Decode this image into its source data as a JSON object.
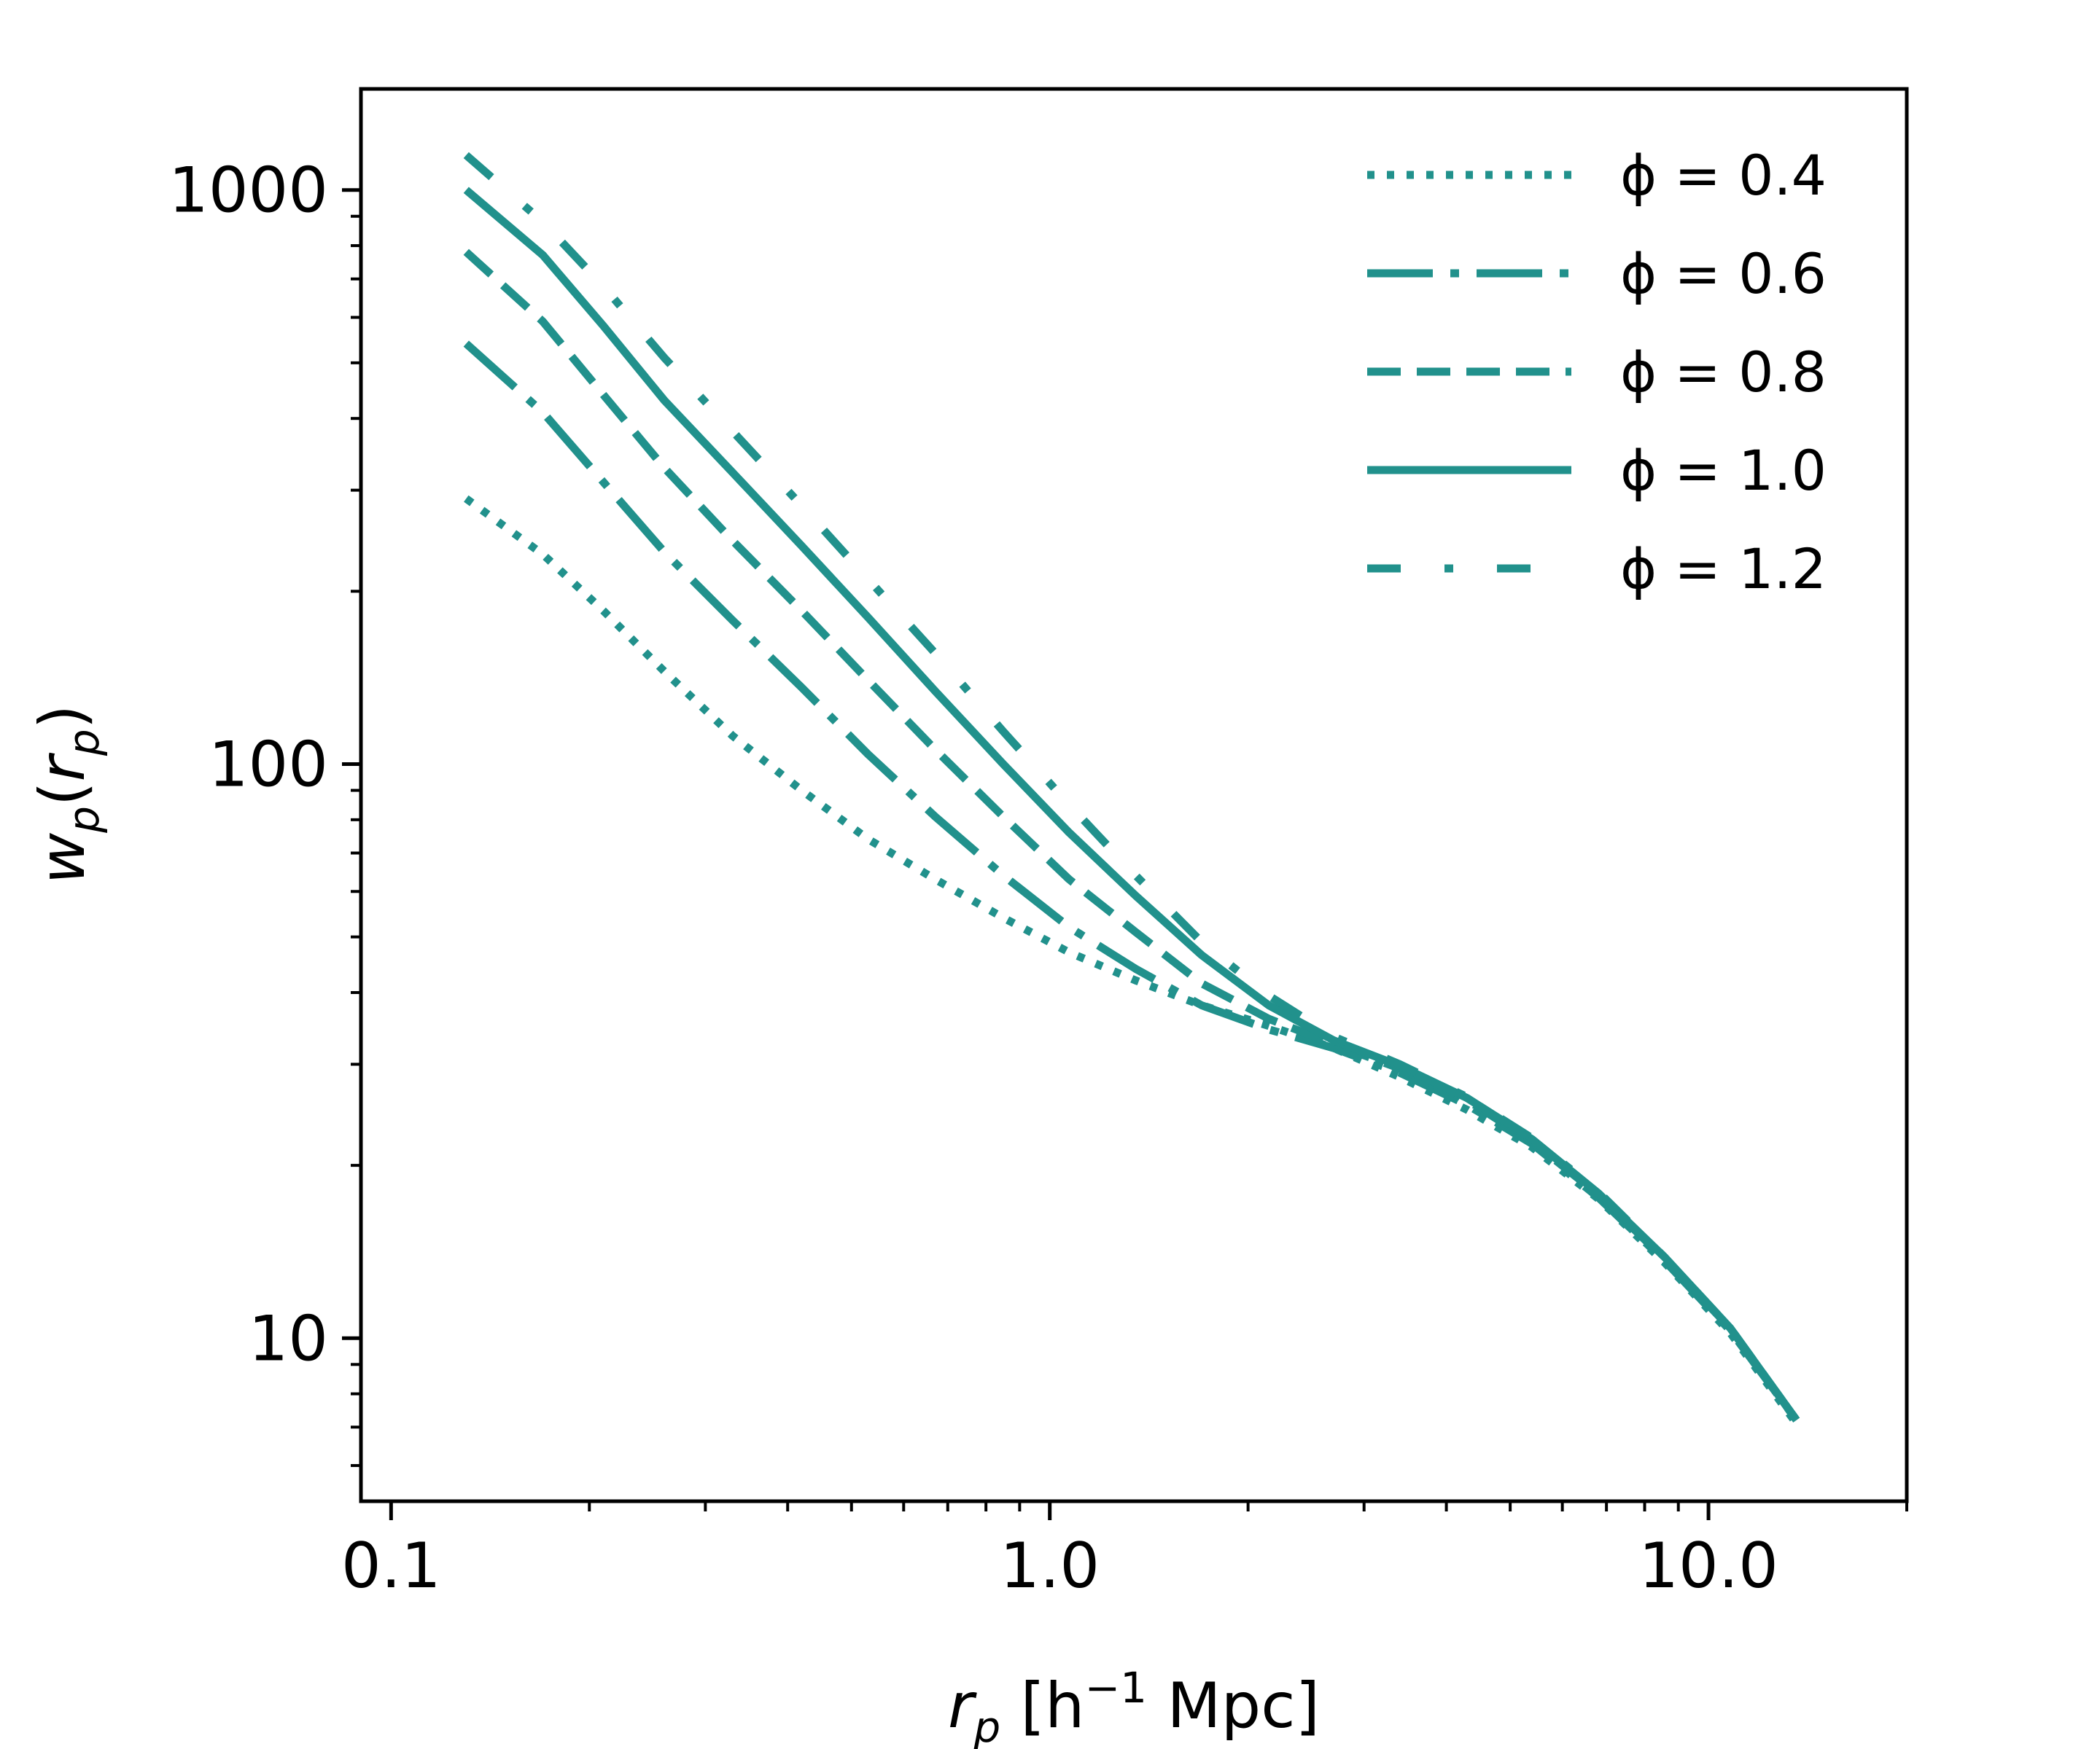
{
  "chart_data": {
    "type": "line",
    "title": "",
    "xlabel": "r_p [h^-1 Mpc]",
    "xlabel_parts": {
      "var": "r",
      "sub": "p",
      "pre": " [h",
      "sup": "−1",
      "post": " Mpc]"
    },
    "ylabel": "w_p(r_p)",
    "ylabel_parts": {
      "var": "w",
      "sub": "p",
      "open": "(",
      "var2": "r",
      "sub2": "p",
      "close": ")"
    },
    "xscale": "log",
    "yscale": "log",
    "xlim": [
      0.09,
      20
    ],
    "ylim": [
      5.2,
      1500
    ],
    "grid": false,
    "legend_position": "top-right",
    "x_tick_labels": [
      "0.1",
      "1.0",
      "10.0"
    ],
    "x_tick_values": [
      0.1,
      1.0,
      10.0
    ],
    "y_tick_labels": [
      "10",
      "100",
      "1000"
    ],
    "y_tick_values": [
      10,
      100,
      1000
    ],
    "color": "#21918c",
    "x": [
      0.13,
      0.17,
      0.21,
      0.26,
      0.33,
      0.42,
      0.53,
      0.67,
      0.85,
      1.07,
      1.35,
      1.7,
      2.15,
      2.7,
      3.4,
      4.3,
      5.4,
      6.8,
      8.6,
      10.8,
      13.6
    ],
    "series": [
      {
        "name": "ϕ = 0.4",
        "phi_label": "0.4",
        "style": "dotted",
        "values": [
          290,
          232,
          185,
          145,
          112,
          90,
          74,
          63,
          54,
          47,
          42,
          38,
          35,
          32,
          28.5,
          25,
          21.5,
          17.5,
          13.5,
          10.2,
          7.1
        ]
      },
      {
        "name": "ϕ = 0.6",
        "phi_label": "0.6",
        "style": "dashdot",
        "values": [
          540,
          410,
          310,
          234,
          178,
          136,
          104,
          81,
          64,
          52,
          44,
          38,
          34.5,
          32,
          29,
          25.5,
          21.8,
          17.6,
          13.6,
          10.3,
          7.2
        ]
      },
      {
        "name": "ϕ = 0.8",
        "phi_label": "0.8",
        "style": "dashed",
        "values": [
          780,
          590,
          440,
          328,
          245,
          185,
          140,
          106,
          81,
          63,
          51,
          41.5,
          36,
          32.5,
          29.5,
          26,
          22,
          17.8,
          13.7,
          10.4,
          7.2
        ]
      },
      {
        "name": "ϕ = 1.0",
        "phi_label": "1.0",
        "style": "solid",
        "values": [
          1000,
          770,
          580,
          430,
          322,
          240,
          180,
          134,
          100,
          76,
          59,
          46.5,
          38,
          33,
          29.8,
          26.2,
          22.2,
          17.9,
          13.8,
          10.4,
          7.2
        ]
      },
      {
        "name": "ϕ = 1.2",
        "phi_label": "1.2",
        "style": "loosedashdot",
        "values": [
          1150,
          880,
          680,
          510,
          380,
          282,
          210,
          156,
          114,
          85,
          64,
          49,
          39.5,
          33.5,
          30,
          26.3,
          22.3,
          18,
          13.8,
          10.4,
          7.2
        ]
      }
    ]
  }
}
